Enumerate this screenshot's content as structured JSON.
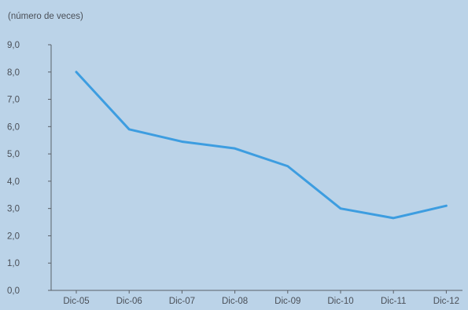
{
  "chart_data": {
    "type": "line",
    "title": "",
    "ylabel": "(número de veces)",
    "xlabel": "",
    "categories": [
      "Dic-05",
      "Dic-06",
      "Dic-07",
      "Dic-08",
      "Dic-09",
      "Dic-10",
      "Dic-11",
      "Dic-12"
    ],
    "y_tick_labels": [
      "0,0",
      "1,0",
      "2,0",
      "3,0",
      "4,0",
      "5,0",
      "6,0",
      "7,0",
      "8,0",
      "9,0"
    ],
    "ylim": [
      0,
      9
    ],
    "grid": false,
    "legend": "none",
    "series": [
      {
        "values": [
          8.0,
          5.9,
          5.45,
          5.2,
          4.55,
          3.0,
          2.65,
          3.1
        ],
        "color": "#3d9de0"
      }
    ],
    "axis_color": "#5a6068",
    "background": "#bbd3e8"
  }
}
